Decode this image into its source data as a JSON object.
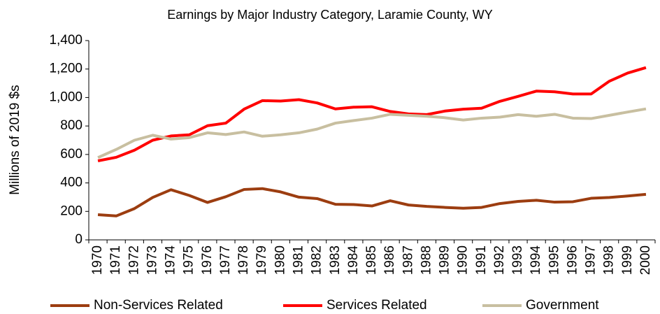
{
  "chart_data": {
    "type": "line",
    "title": "Earnings by Major Industry Category, Laramie County, WY",
    "y_label": "Millions of 2019 $s",
    "categories": [
      "1970",
      "1971",
      "1972",
      "1973",
      "1974",
      "1975",
      "1976",
      "1977",
      "1978",
      "1979",
      "1980",
      "1981",
      "1982",
      "1983",
      "1984",
      "1985",
      "1986",
      "1987",
      "1988",
      "1989",
      "1990",
      "1991",
      "1992",
      "1993",
      "1994",
      "1995",
      "1996",
      "1997",
      "1998",
      "1999",
      "2000"
    ],
    "series": [
      {
        "name": "Non-Services Related",
        "color": "#9c3d10",
        "values": [
          177,
          168,
          220,
          298,
          352,
          312,
          263,
          303,
          354,
          360,
          337,
          300,
          290,
          250,
          248,
          238,
          275,
          245,
          235,
          228,
          222,
          228,
          255,
          270,
          278,
          265,
          268,
          292,
          298,
          308,
          320
        ]
      },
      {
        "name": "Services Related",
        "color": "#ff0000",
        "values": [
          555,
          580,
          630,
          700,
          730,
          738,
          802,
          820,
          918,
          978,
          975,
          985,
          962,
          920,
          932,
          935,
          902,
          885,
          880,
          905,
          918,
          925,
          973,
          1008,
          1045,
          1040,
          1025,
          1025,
          1115,
          1172,
          1210
        ]
      },
      {
        "name": "Government",
        "color": "#c8bfa0",
        "values": [
          578,
          635,
          700,
          735,
          708,
          718,
          752,
          740,
          758,
          728,
          738,
          752,
          778,
          820,
          838,
          855,
          882,
          875,
          868,
          858,
          842,
          855,
          862,
          880,
          868,
          882,
          855,
          852,
          875,
          898,
          920
        ]
      }
    ],
    "ylim": [
      0,
      1400
    ],
    "yticks": [
      0,
      200,
      400,
      600,
      800,
      {
        "value": 1000,
        "label": "1,000"
      },
      {
        "value": 1200,
        "label": "1,200"
      },
      {
        "value": 1400,
        "label": "1,400"
      }
    ],
    "legend": "bottom"
  }
}
